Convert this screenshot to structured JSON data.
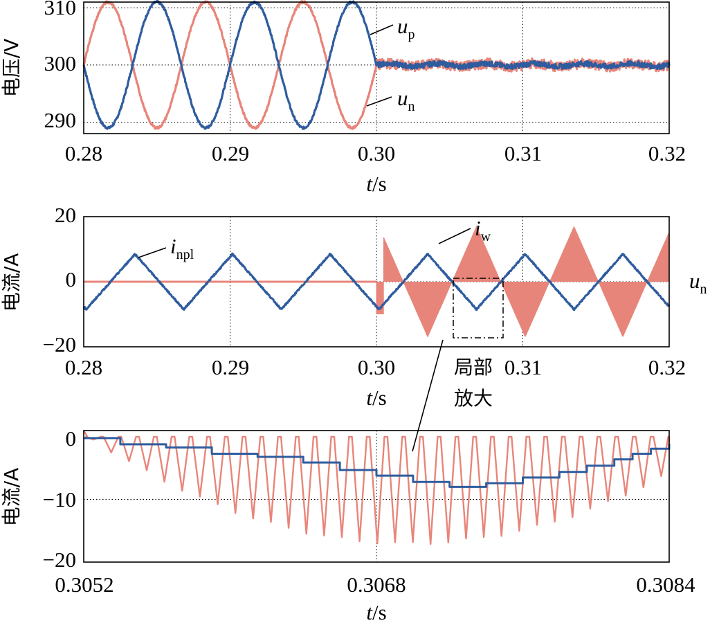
{
  "colors": {
    "blue": "#2F5C9E",
    "pink": "#E8857A"
  },
  "chart_data": [
    {
      "id": "voltage",
      "type": "line",
      "ylabel": "电压/V",
      "xlabel_italic": "t",
      "xlabel_unit": "/s",
      "xlim": [
        0.28,
        0.32
      ],
      "ylim": [
        288,
        311
      ],
      "xticks": [
        "0.28",
        "0.29",
        "0.30",
        "0.31",
        "0.32"
      ],
      "xtick_values": [
        0.28,
        0.29,
        0.3,
        0.31,
        0.32
      ],
      "yticks": [
        "290",
        "300",
        "310"
      ],
      "ytick_values": [
        290,
        300,
        310
      ],
      "grid_x": [
        0.29,
        0.3,
        0.31
      ],
      "grid_y": [
        290,
        300,
        310
      ],
      "series": [
        {
          "name": "up",
          "label_main": "u",
          "label_sub": "p",
          "color": "#2F5C9E",
          "model": "balanced sine 300±11 V, f≈150 Hz until 0.30 s, then ≈300 V with ripple",
          "offset": 300,
          "amplitude": 11,
          "frequency": 150,
          "phase_deg": 180,
          "end": 0.3,
          "after_level": 300
        },
        {
          "name": "un",
          "label_main": "u",
          "label_sub": "n",
          "color": "#E8857A",
          "model": "balanced sine 300±11 V (antiphase to up) until 0.30 s, then ≈300 V with ripple",
          "offset": 300,
          "amplitude": 11,
          "frequency": 150,
          "phase_deg": 0,
          "end": 0.3,
          "after_level": 300
        }
      ]
    },
    {
      "id": "current",
      "type": "line",
      "ylabel": "电流/A",
      "xlabel_italic": "t",
      "xlabel_unit": "/s",
      "xlim": [
        0.28,
        0.32
      ],
      "ylim": [
        -20,
        20
      ],
      "xticks": [
        "0.28",
        "0.29",
        "0.30",
        "0.31",
        "0.32"
      ],
      "xtick_values": [
        0.28,
        0.29,
        0.3,
        0.31,
        0.32
      ],
      "yticks": [
        "20",
        "0",
        "−20"
      ],
      "ytick_values": [
        20,
        0,
        -20
      ],
      "grid_x": [
        0.29,
        0.3,
        0.31
      ],
      "grid_y": [
        0
      ],
      "series": [
        {
          "name": "inpl",
          "label_main": "i",
          "label_sub": "npl",
          "color": "#2F5C9E",
          "model": "triangular wave ±8.5 A, f≈150 Hz (peak ≈+8.5 A at 0.2835 s), continues after 0.30 s"
        },
        {
          "name": "iw",
          "label_main": "i",
          "label_sub": "w",
          "color": "#E8857A",
          "model": "0 A until 0.30 s, then PWM pulses with sinusoidal envelope ±17 A, f≈150 Hz"
        }
      ],
      "zoom_box": {
        "x": [
          0.3052,
          0.3084
        ],
        "y": [
          -17,
          1
        ]
      },
      "zoom_label_line1": "局部",
      "zoom_label_line2": "放大",
      "clipped_label_main": "u",
      "clipped_label_sub": "n"
    },
    {
      "id": "zoom",
      "type": "line",
      "ylabel": "电流/A",
      "xlabel_italic": "t",
      "xlabel_unit": "/s",
      "xlim": [
        0.3052,
        0.3084
      ],
      "ylim": [
        -20,
        1
      ],
      "xticks": [
        "0.3052",
        "0.3068",
        "0.3084"
      ],
      "xtick_values": [
        0.3052,
        0.3068,
        0.3084
      ],
      "yticks": [
        "0",
        "−10",
        "−20"
      ],
      "ytick_values": [
        0,
        -10,
        -20
      ],
      "grid_x": [
        0.3068
      ],
      "grid_y": [
        -10
      ],
      "series": [
        {
          "name": "inpl",
          "color": "#2F5C9E",
          "model": "staircase from 0 A down to ≈−8 A near 0.3070 s, back up to ≈−1 A at 0.3084 s"
        },
        {
          "name": "iw",
          "color": "#E8857A",
          "model": "≈33 triangular pulses from 0 A down to envelope min ≈−17 A near 0.3070 s"
        }
      ]
    }
  ]
}
